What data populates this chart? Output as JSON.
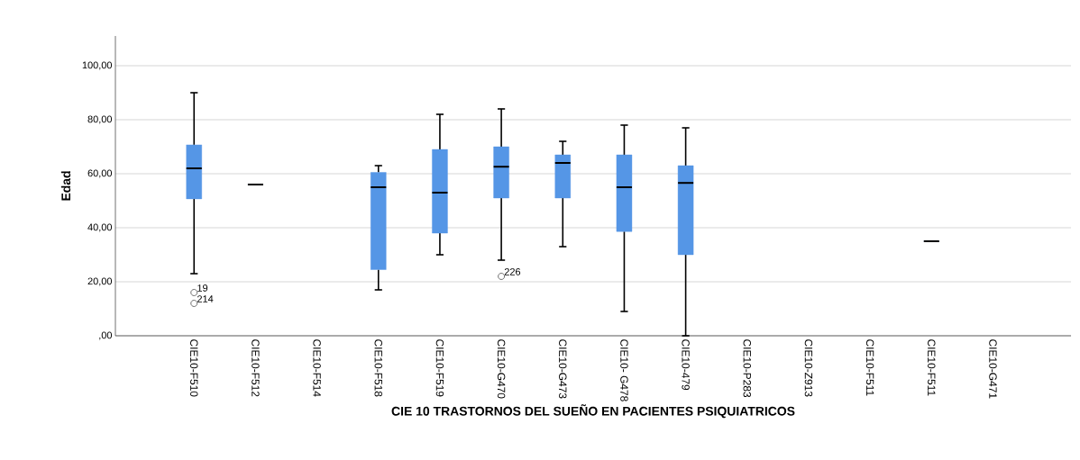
{
  "chart_data": {
    "type": "box",
    "xlabel": "CIE 10 TRASTORNOS DEL SUEÑO EN PACIENTES PSIQUIATRICOS",
    "ylabel": "Edad",
    "categories": [
      "CIE10-F510",
      "CIE10-F512",
      "CIE10-F514",
      "CIE10-F518",
      "CIE10-F519",
      "CIE10-G470",
      "CIE10-G473",
      "CIE10- G478",
      "CIE10-479",
      "CIE10-P283",
      "CIE10-Z913",
      "CIE10-F511",
      "CIE10-F511",
      "CIE10-G471"
    ],
    "color": "#5596e6",
    "boxes": [
      {
        "low": 23,
        "q1": 50.7,
        "median": 62,
        "q3": 70.7,
        "high": 90,
        "outliers": [
          16,
          12
        ]
      },
      {
        "low": 56,
        "q1": 56,
        "median": 56,
        "q3": 56,
        "high": 56
      },
      null,
      {
        "low": 17,
        "q1": 24.5,
        "median": 55,
        "q3": 60.5,
        "high": 63
      },
      {
        "low": 30,
        "q1": 38,
        "median": 53,
        "q3": 69,
        "high": 82
      },
      {
        "low": 28,
        "q1": 51,
        "median": 62.6,
        "q3": 70,
        "high": 84,
        "outliers": [
          22
        ]
      },
      {
        "low": 33,
        "q1": 51,
        "median": 64,
        "q3": 67,
        "high": 72
      },
      {
        "low": 9,
        "q1": 38.6,
        "median": 55,
        "q3": 67,
        "high": 78
      },
      {
        "low": 0,
        "q1": 30,
        "median": 56.6,
        "q3": 63,
        "high": 77
      },
      null,
      null,
      null,
      {
        "low": 35,
        "q1": 35,
        "median": 35,
        "q3": 35,
        "high": 35
      },
      null
    ],
    "ylim": [
      0,
      111
    ],
    "yticks": [
      {
        "value": 0,
        "label": ",00"
      },
      {
        "value": 20,
        "label": "20,00"
      },
      {
        "value": 40,
        "label": "40,00"
      },
      {
        "value": 60,
        "label": "60,00"
      },
      {
        "value": 80,
        "label": "80,00"
      },
      {
        "value": 100,
        "label": "100,00"
      }
    ],
    "grid": "y",
    "annotations": [
      "19",
      "214",
      "226"
    ]
  }
}
